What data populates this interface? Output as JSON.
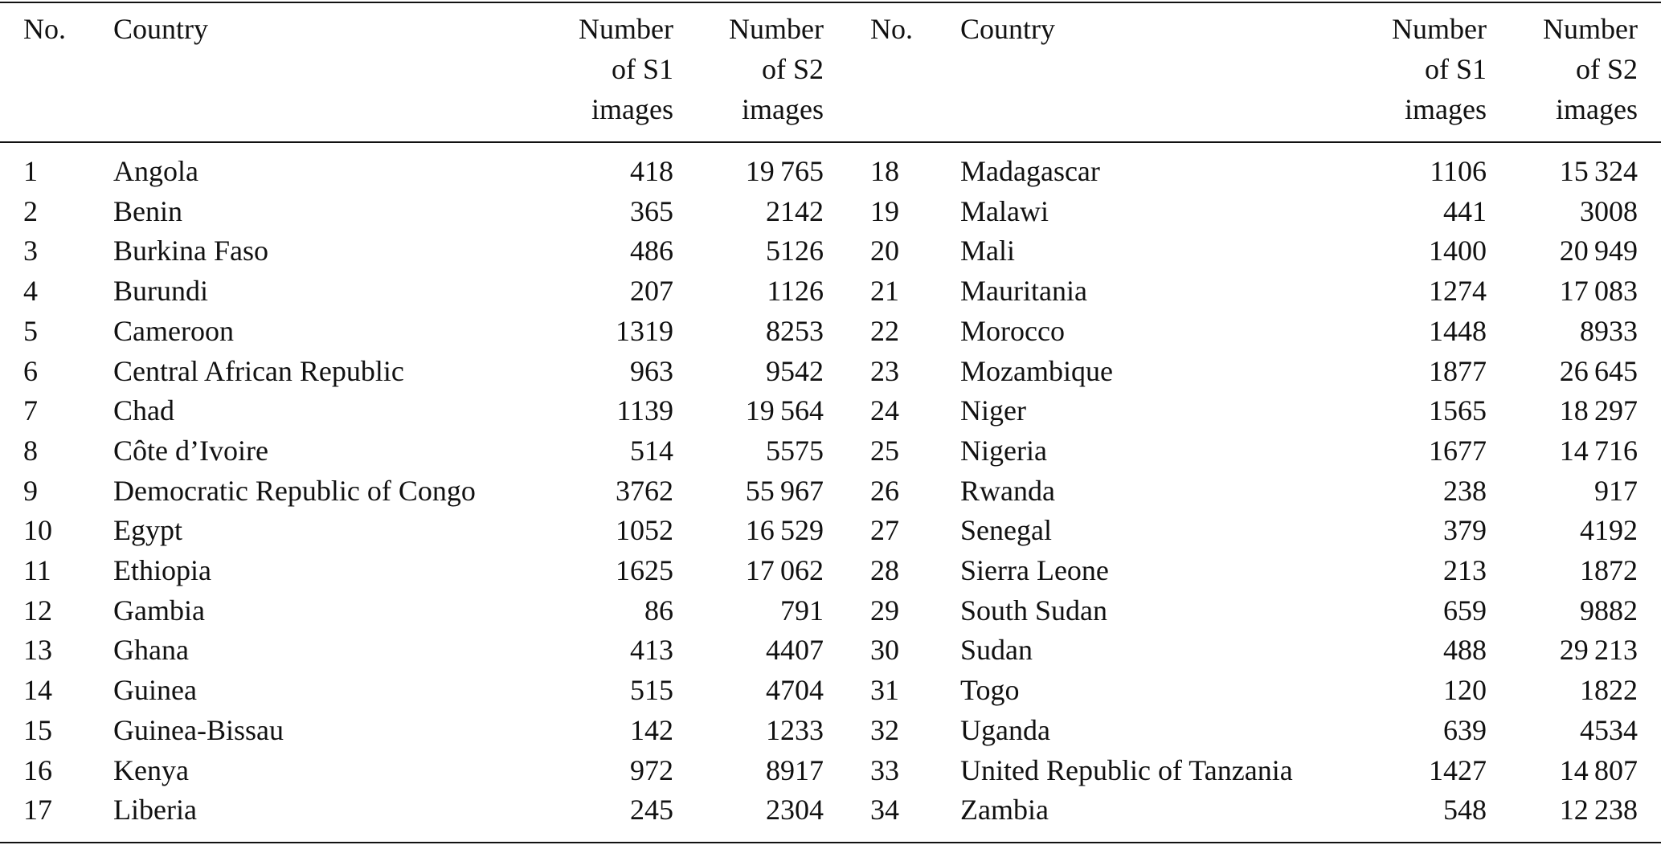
{
  "table": {
    "header": [
      [
        "No."
      ],
      [
        "Country"
      ],
      [
        "Number",
        "of S1",
        "images"
      ],
      [
        "Number",
        "of S2",
        "images"
      ],
      [
        "No."
      ],
      [
        "Country"
      ],
      [
        "Number",
        "of S1",
        "images"
      ],
      [
        "Number",
        "of S2",
        "images"
      ]
    ],
    "rows": [
      [
        "1",
        "Angola",
        "418",
        "19 765",
        "18",
        "Madagascar",
        "1106",
        "15 324"
      ],
      [
        "2",
        "Benin",
        "365",
        "2142",
        "19",
        "Malawi",
        "441",
        "3008"
      ],
      [
        "3",
        "Burkina Faso",
        "486",
        "5126",
        "20",
        "Mali",
        "1400",
        "20 949"
      ],
      [
        "4",
        "Burundi",
        "207",
        "1126",
        "21",
        "Mauritania",
        "1274",
        "17 083"
      ],
      [
        "5",
        "Cameroon",
        "1319",
        "8253",
        "22",
        "Morocco",
        "1448",
        "8933"
      ],
      [
        "6",
        "Central African Republic",
        "963",
        "9542",
        "23",
        "Mozambique",
        "1877",
        "26 645"
      ],
      [
        "7",
        "Chad",
        "1139",
        "19 564",
        "24",
        "Niger",
        "1565",
        "18 297"
      ],
      [
        "8",
        "Côte d’Ivoire",
        "514",
        "5575",
        "25",
        "Nigeria",
        "1677",
        "14 716"
      ],
      [
        "9",
        "Democratic Republic of Congo",
        "3762",
        "55 967",
        "26",
        "Rwanda",
        "238",
        "917"
      ],
      [
        "10",
        "Egypt",
        "1052",
        "16 529",
        "27",
        "Senegal",
        "379",
        "4192"
      ],
      [
        "11",
        "Ethiopia",
        "1625",
        "17 062",
        "28",
        "Sierra Leone",
        "213",
        "1872"
      ],
      [
        "12",
        "Gambia",
        "86",
        "791",
        "29",
        "South Sudan",
        "659",
        "9882"
      ],
      [
        "13",
        "Ghana",
        "413",
        "4407",
        "30",
        "Sudan",
        "488",
        "29 213"
      ],
      [
        "14",
        "Guinea",
        "515",
        "4704",
        "31",
        "Togo",
        "120",
        "1822"
      ],
      [
        "15",
        "Guinea-Bissau",
        "142",
        "1233",
        "32",
        "Uganda",
        "639",
        "4534"
      ],
      [
        "16",
        "Kenya",
        "972",
        "8917",
        "33",
        "United Republic of Tanzania",
        "1427",
        "14 807"
      ],
      [
        "17",
        "Liberia",
        "245",
        "2304",
        "34",
        "Zambia",
        "548",
        "12 238"
      ]
    ]
  }
}
